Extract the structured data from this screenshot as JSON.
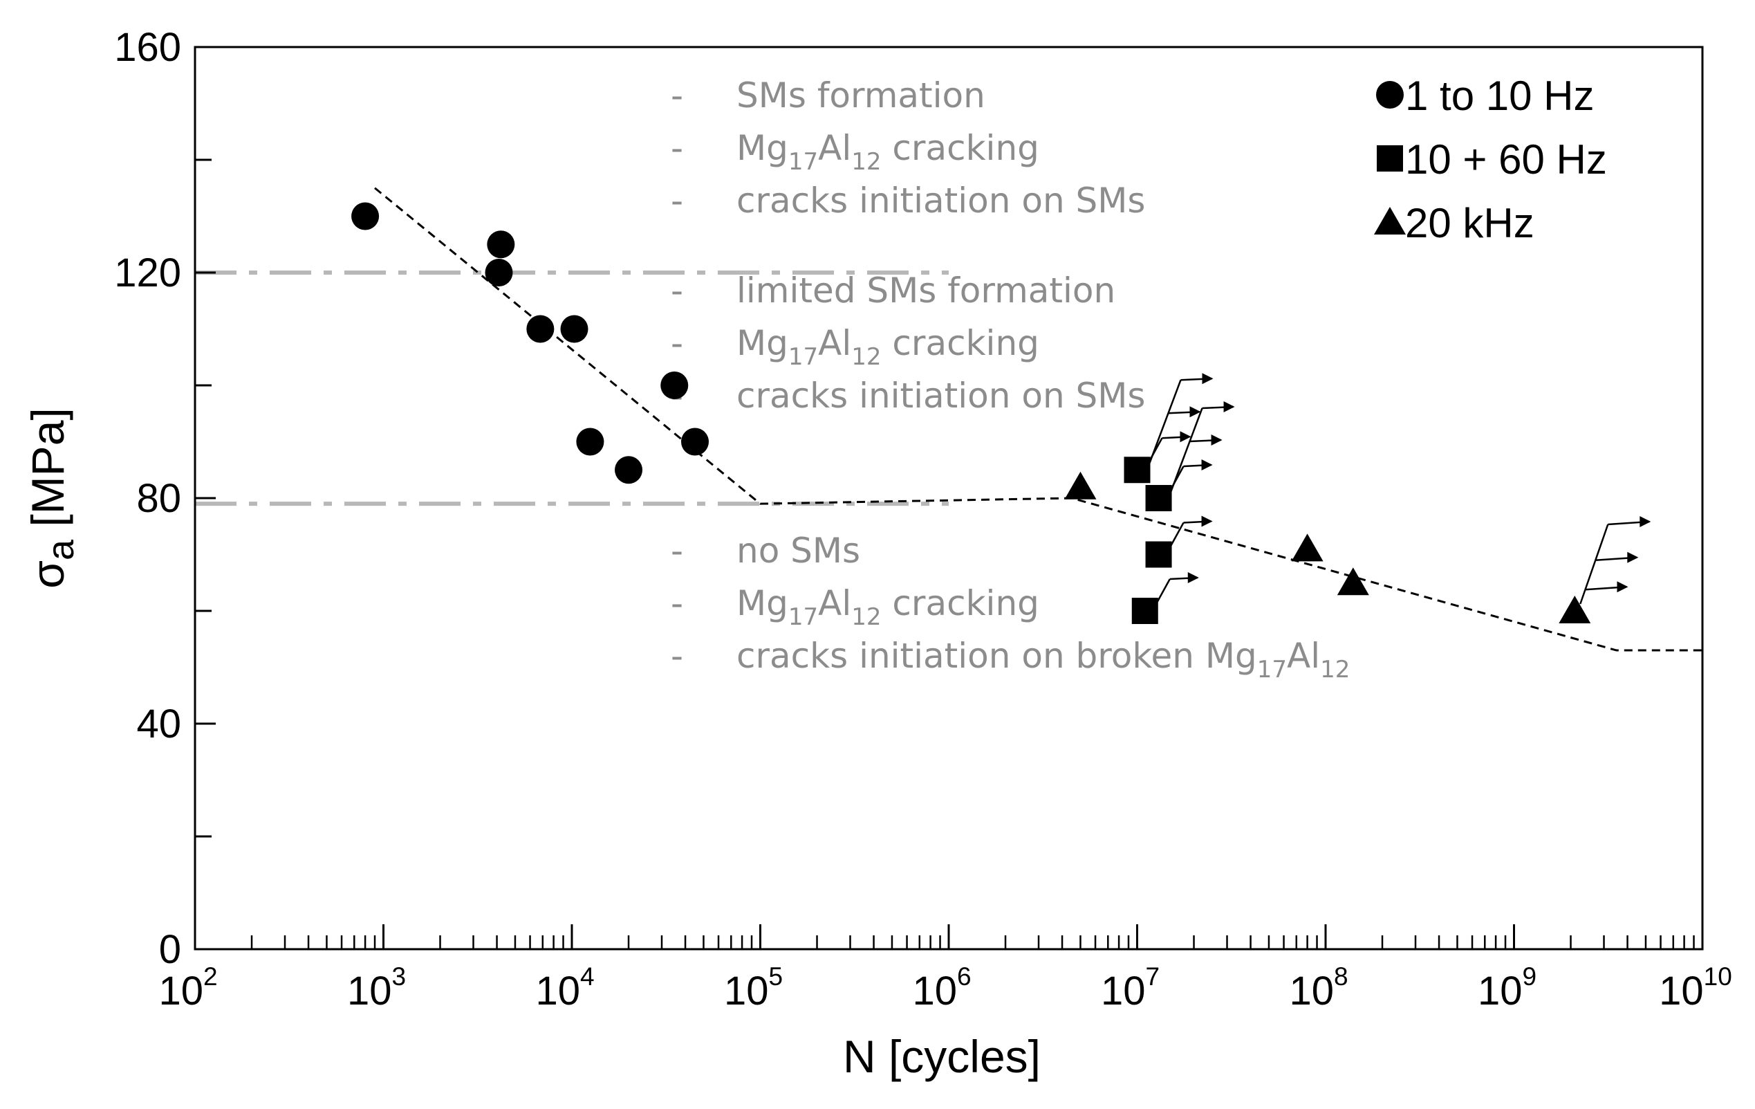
{
  "chart_data": {
    "type": "scatter",
    "xlabel": "N [cycles]",
    "ylabel_symbol": "σ",
    "ylabel_sub": "a",
    "ylabel_unit": " [MPa]",
    "x_scale": "log",
    "xlim": [
      100,
      10000000000
    ],
    "ylim": [
      0,
      160
    ],
    "x_ticks": [
      {
        "base": "10",
        "exp": "2",
        "value": 100
      },
      {
        "base": "10",
        "exp": "3",
        "value": 1000
      },
      {
        "base": "10",
        "exp": "4",
        "value": 10000
      },
      {
        "base": "10",
        "exp": "5",
        "value": 100000
      },
      {
        "base": "10",
        "exp": "6",
        "value": 1000000
      },
      {
        "base": "10",
        "exp": "7",
        "value": 10000000
      },
      {
        "base": "10",
        "exp": "8",
        "value": 100000000
      },
      {
        "base": "10",
        "exp": "9",
        "value": 1000000000
      },
      {
        "base": "10",
        "exp": "10",
        "value": 10000000000
      }
    ],
    "y_ticks": [
      0,
      40,
      80,
      120,
      160
    ],
    "y_minor_ticks": [
      20,
      60,
      100,
      140
    ],
    "legend_position": "top-right",
    "series": [
      {
        "name": "1 to 10 Hz",
        "marker": "circle",
        "points": [
          {
            "x": 800,
            "y": 130
          },
          {
            "x": 4200,
            "y": 125
          },
          {
            "x": 4100,
            "y": 120
          },
          {
            "x": 6800,
            "y": 110
          },
          {
            "x": 10300,
            "y": 110
          },
          {
            "x": 12500,
            "y": 90
          },
          {
            "x": 20000,
            "y": 85
          },
          {
            "x": 35000,
            "y": 100
          },
          {
            "x": 45000,
            "y": 90
          }
        ]
      },
      {
        "name": "10 + 60 Hz",
        "marker": "square",
        "points": [
          {
            "x": 10000000,
            "y": 85,
            "runout": true
          },
          {
            "x": 13000000,
            "y": 80,
            "runout": true
          },
          {
            "x": 13000000,
            "y": 70,
            "runout": true
          },
          {
            "x": 11000000,
            "y": 60,
            "runout": true
          }
        ]
      },
      {
        "name": "20 kHz",
        "marker": "triangle",
        "points": [
          {
            "x": 5000000,
            "y": 82
          },
          {
            "x": 80000000,
            "y": 71
          },
          {
            "x": 140000000,
            "y": 65
          },
          {
            "x": 2100000000,
            "y": 60,
            "runout": true
          }
        ]
      }
    ],
    "trend_line": {
      "style": "dashed",
      "points": [
        {
          "x": 900,
          "y": 135
        },
        {
          "x": 100000,
          "y": 79
        },
        {
          "x": 4500000,
          "y": 80
        },
        {
          "x": 3500000000,
          "y": 53
        },
        {
          "x": 10000000000,
          "y": 53
        }
      ]
    },
    "threshold_lines": [
      {
        "y": 120,
        "x_end": 1000000,
        "style": "dash-dot"
      },
      {
        "y": 79,
        "x_end": 1000000,
        "style": "dash-dot"
      }
    ],
    "annotations": [
      {
        "group": "above-120",
        "lines": [
          {
            "bullet": "-",
            "parts": [
              {
                "text": "SMs formation"
              }
            ]
          },
          {
            "bullet": "-",
            "parts": [
              {
                "text": "Mg"
              },
              {
                "text": "17",
                "sub": true
              },
              {
                "text": "Al"
              },
              {
                "text": "12",
                "sub": true
              },
              {
                "text": " cracking"
              }
            ]
          },
          {
            "bullet": "-",
            "parts": [
              {
                "text": "cracks initiation on SMs"
              }
            ]
          }
        ]
      },
      {
        "group": "between-80-120",
        "lines": [
          {
            "bullet": "-",
            "parts": [
              {
                "text": "limited SMs formation"
              }
            ]
          },
          {
            "bullet": "-",
            "parts": [
              {
                "text": "Mg"
              },
              {
                "text": "17",
                "sub": true
              },
              {
                "text": "Al"
              },
              {
                "text": "12",
                "sub": true
              },
              {
                "text": " cracking"
              }
            ]
          },
          {
            "bullet": "-",
            "parts": [
              {
                "text": "cracks initiation on SMs"
              }
            ]
          }
        ]
      },
      {
        "group": "below-80",
        "lines": [
          {
            "bullet": "-",
            "parts": [
              {
                "text": "no SMs"
              }
            ]
          },
          {
            "bullet": "-",
            "parts": [
              {
                "text": "Mg"
              },
              {
                "text": "17",
                "sub": true
              },
              {
                "text": "Al"
              },
              {
                "text": "12",
                "sub": true
              },
              {
                "text": " cracking"
              }
            ]
          },
          {
            "bullet": "-",
            "parts": [
              {
                "text": "cracks initiation on broken Mg"
              },
              {
                "text": "17",
                "sub": true
              },
              {
                "text": "Al"
              },
              {
                "text": "12",
                "sub": true
              }
            ]
          }
        ]
      }
    ],
    "colors": {
      "marker": "#000000",
      "annotation_text": "#8c8c8c",
      "threshold_line": "#b8b8b8",
      "axis": "#000000"
    }
  }
}
